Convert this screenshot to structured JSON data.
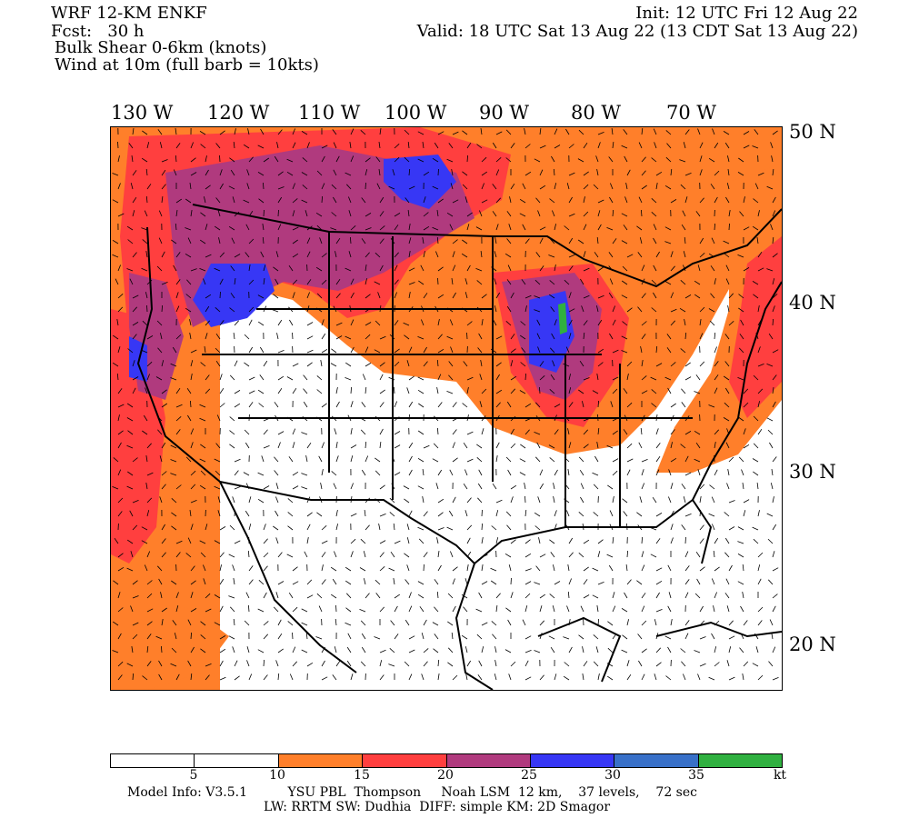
{
  "header": {
    "model": "WRF 12-KM ENKF",
    "fcst": "Fcst:   30 h",
    "field1": "Bulk Shear 0-6km (knots)",
    "field2": "Wind at 10m (full barb = 10kts)",
    "init": "Init: 12 UTC Fri 12 Aug 22",
    "valid": "Valid: 18 UTC Sat 13 Aug 22 (13 CDT Sat 13 Aug 22)"
  },
  "lon_labels": [
    "130 W",
    "120 W",
    "110 W",
    "100 W",
    "90 W",
    "80 W",
    "70 W"
  ],
  "lat_labels": [
    "50 N",
    "40 N",
    "30 N",
    "20 N"
  ],
  "colorbar": {
    "colors": [
      "#ffffff",
      "#ffffff",
      "#ff7f2a",
      "#ff3f3f",
      "#b03a7e",
      "#3737f5",
      "#3870c8",
      "#30b040"
    ],
    "ticks": [
      "5",
      "10",
      "15",
      "20",
      "25",
      "30",
      "35"
    ],
    "unit": "kt"
  },
  "footer": {
    "line1": "Model Info: V3.5.1          YSU PBL  Thompson     Noah LSM  12 km,    37 levels,    72 sec",
    "line2": "LW: RRTM SW: Dudhia  DIFF: simple KM: 2D Smagor"
  }
}
